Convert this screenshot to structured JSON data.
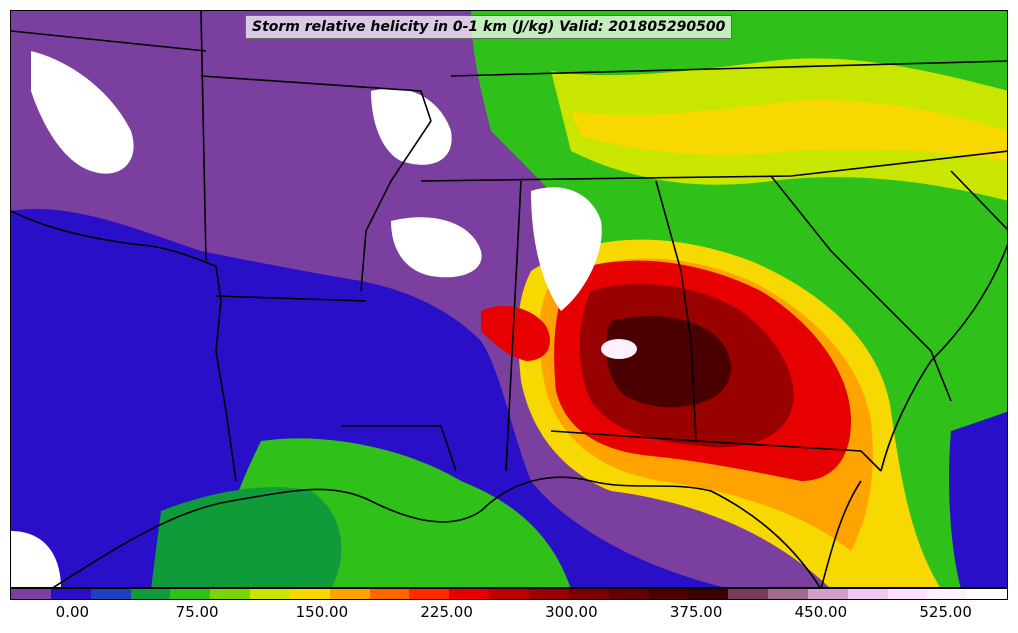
{
  "title": "Storm relative helicity in 0-1 km (J/kg) Valid: 201805290500",
  "colorbar": {
    "colors": [
      "#7b3fa0",
      "#2a0fc8",
      "#1f3fc0",
      "#0f9b3a",
      "#2fc01a",
      "#7ad40a",
      "#c8e600",
      "#f7d800",
      "#ffa300",
      "#ff6600",
      "#ff2a00",
      "#e60000",
      "#bf0000",
      "#990000",
      "#7a0000",
      "#600000",
      "#4a0000",
      "#3a0000",
      "#7a3a5a",
      "#a06a8a",
      "#d0a0c8",
      "#f0c8f0",
      "#ffe0ff",
      "#fff0ff",
      "#ffffff"
    ],
    "ticks": [
      "0.00",
      "75.00",
      "150.00",
      "225.00",
      "300.00",
      "375.00",
      "450.00",
      "525.00"
    ],
    "tick_values": [
      0,
      75,
      150,
      225,
      300,
      375,
      450,
      525
    ],
    "range": [
      -37.5,
      562.5
    ]
  },
  "map": {
    "product": "Storm relative helicity 0-1 km",
    "units": "J/kg"
  }
}
